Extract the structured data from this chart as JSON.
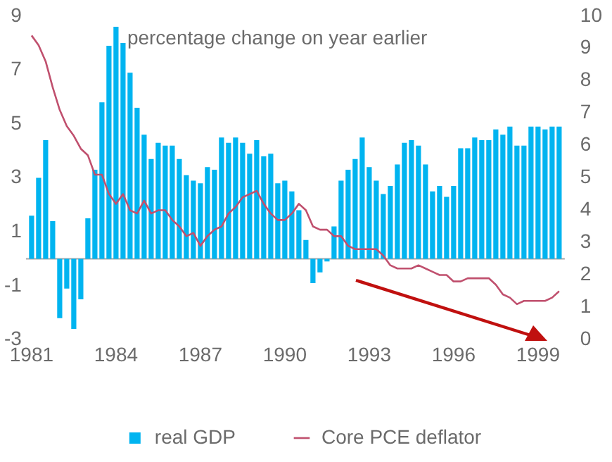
{
  "chart_data": {
    "type": "bar",
    "x": [
      1981,
      1981.25,
      1981.5,
      1981.75,
      1982,
      1982.25,
      1982.5,
      1982.75,
      1983,
      1983.25,
      1983.5,
      1983.75,
      1984,
      1984.25,
      1984.5,
      1984.75,
      1985,
      1985.25,
      1985.5,
      1985.75,
      1986,
      1986.25,
      1986.5,
      1986.75,
      1987,
      1987.25,
      1987.5,
      1987.75,
      1988,
      1988.25,
      1988.5,
      1988.75,
      1989,
      1989.25,
      1989.5,
      1989.75,
      1990,
      1990.25,
      1990.5,
      1990.75,
      1991,
      1991.25,
      1991.5,
      1991.75,
      1992,
      1992.25,
      1992.5,
      1992.75,
      1993,
      1993.25,
      1993.5,
      1993.75,
      1994,
      1994.25,
      1994.5,
      1994.75,
      1995,
      1995.25,
      1995.5,
      1995.75,
      1996,
      1996.25,
      1996.5,
      1996.75,
      1997,
      1997.25,
      1997.5,
      1997.75,
      1998,
      1998.25,
      1998.5,
      1998.75,
      1999,
      1999.25,
      1999.5,
      1999.75
    ],
    "series": [
      {
        "name": "real GDP",
        "color": "#00b4f0",
        "values": [
          1.6,
          3.0,
          4.4,
          1.4,
          -2.2,
          -1.1,
          -2.6,
          -1.5,
          1.5,
          3.3,
          5.8,
          7.9,
          8.6,
          8.0,
          6.9,
          5.6,
          4.6,
          3.7,
          4.3,
          4.2,
          4.2,
          3.7,
          3.1,
          2.9,
          2.8,
          3.4,
          3.3,
          4.5,
          4.3,
          4.5,
          4.3,
          3.9,
          4.4,
          3.8,
          3.9,
          2.8,
          2.9,
          2.5,
          1.8,
          0.7,
          -0.9,
          -0.5,
          -0.1,
          1.2,
          2.9,
          3.3,
          3.7,
          4.5,
          3.4,
          2.9,
          2.4,
          2.7,
          3.5,
          4.3,
          4.4,
          4.2,
          3.5,
          2.5,
          2.7,
          2.3,
          2.7,
          4.1,
          4.1,
          4.5,
          4.4,
          4.4,
          4.8,
          4.6,
          4.9,
          4.2,
          4.2,
          4.9,
          4.9,
          4.8,
          4.9,
          4.9
        ]
      },
      {
        "name": "Core PCE deflator",
        "type": "line",
        "axis": "y2",
        "color": "#c0506e",
        "values": [
          9.4,
          9.1,
          8.6,
          7.8,
          7.1,
          6.6,
          6.3,
          5.9,
          5.7,
          5.1,
          5.1,
          4.5,
          4.2,
          4.5,
          4.0,
          3.9,
          4.3,
          3.9,
          4.0,
          4.0,
          3.7,
          3.5,
          3.2,
          3.3,
          2.9,
          3.2,
          3.4,
          3.5,
          3.9,
          4.1,
          4.4,
          4.5,
          4.6,
          4.2,
          3.9,
          3.7,
          3.7,
          3.9,
          4.2,
          4.0,
          3.5,
          3.4,
          3.4,
          3.2,
          3.2,
          2.9,
          2.8,
          2.8,
          2.8,
          2.8,
          2.6,
          2.3,
          2.2,
          2.2,
          2.2,
          2.3,
          2.2,
          2.1,
          2.0,
          2.0,
          1.8,
          1.8,
          1.9,
          1.9,
          1.9,
          1.9,
          1.7,
          1.4,
          1.3,
          1.1,
          1.2,
          1.2,
          1.2,
          1.2,
          1.3,
          1.5
        ]
      }
    ],
    "xlim": [
      1980.8,
      1999.95
    ],
    "xticks": [
      1981,
      1984,
      1987,
      1990,
      1993,
      1996,
      1999
    ],
    "ylim": [
      -3,
      9
    ],
    "yticks": [
      -3,
      -1,
      1,
      3,
      5,
      7,
      9
    ],
    "y2lim": [
      0,
      10
    ],
    "y2ticks": [
      0,
      1,
      2,
      3,
      4,
      5,
      6,
      7,
      8,
      9,
      10
    ],
    "ref_lines": [
      {
        "axis": "y",
        "value": 0,
        "color": "#a6a6a6"
      }
    ],
    "annotations": [
      "percentage change on year earlier"
    ],
    "grid": false,
    "legend": "bottom"
  }
}
